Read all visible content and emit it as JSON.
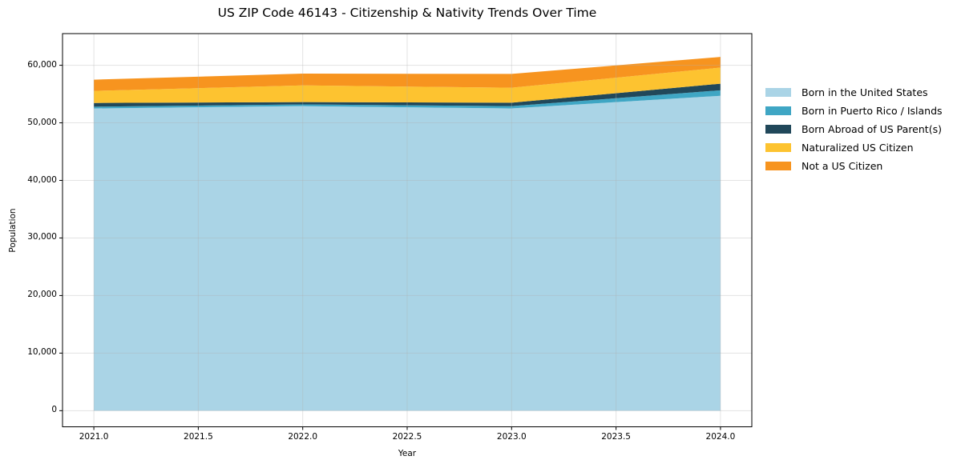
{
  "chart": {
    "title": "US ZIP Code 46143 - Citizenship & Nativity Trends Over Time",
    "xlabel": "Year",
    "ylabel": "Population"
  },
  "chart_data": {
    "type": "area",
    "stacked": true,
    "title": "US ZIP Code 46143 - Citizenship & Nativity Trends Over Time",
    "xlabel": "Year",
    "ylabel": "Population",
    "x": [
      2021,
      2022,
      2023,
      2024
    ],
    "series": [
      {
        "name": "Born in the United States",
        "color": "#AAD4E6",
        "values": [
          52500,
          52900,
          52500,
          54700
        ]
      },
      {
        "name": "Born in Puerto Rico / Islands",
        "color": "#3FA6C4",
        "values": [
          300,
          300,
          400,
          950
        ]
      },
      {
        "name": "Born Abroad of US Parent(s)",
        "color": "#21485A",
        "values": [
          650,
          400,
          600,
          1150
        ]
      },
      {
        "name": "Naturalized US Citizen",
        "color": "#FDC330",
        "values": [
          2100,
          2900,
          2600,
          2800
        ]
      },
      {
        "name": "Not a US Citizen",
        "color": "#F7941F",
        "values": [
          1950,
          2050,
          2400,
          1850
        ]
      }
    ],
    "totals": [
      57500,
      58550,
      58500,
      61450
    ],
    "xticks": {
      "values": [
        2021.0,
        2021.5,
        2022.0,
        2022.5,
        2023.0,
        2023.5,
        2024.0
      ],
      "labels": [
        "2021.0",
        "2021.5",
        "2022.0",
        "2022.5",
        "2023.0",
        "2023.5",
        "2024.0"
      ]
    },
    "yticks": {
      "values": [
        0,
        10000,
        20000,
        30000,
        40000,
        50000,
        60000
      ],
      "labels": [
        "0",
        "10,000",
        "20,000",
        "30,000",
        "40,000",
        "50,000",
        "60,000"
      ]
    },
    "xlim": [
      2020.85,
      2024.15
    ],
    "ylim": [
      -2800,
      65500
    ],
    "grid": true,
    "grid_color": "rgba(176,176,176,0.35)",
    "spine_color": "#000000",
    "legend_position": "right-outside"
  }
}
